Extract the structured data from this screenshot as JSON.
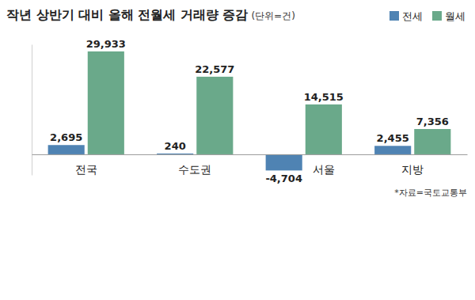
{
  "chart_data": {
    "type": "bar",
    "title": "작년 상반기 대비 올해 전월세 거래량 증감",
    "subtitle": "(단위=건)",
    "annotations": [
      "*자료=국토교통부"
    ],
    "categories": [
      "전국",
      "수도권",
      "서울",
      "지방"
    ],
    "series": [
      {
        "name": "전세",
        "color": "#4f83b3",
        "values": [
          2695,
          240,
          -4704,
          2455
        ],
        "value_labels": [
          "2,695",
          "240",
          "-4,704",
          "2,455"
        ]
      },
      {
        "name": "월세",
        "color": "#6aa98a",
        "values": [
          29933,
          22577,
          14515,
          7356
        ],
        "value_labels": [
          "29,933",
          "22,577",
          "14,515",
          "7,356"
        ]
      }
    ],
    "ylim": [
      -6000,
      32000
    ],
    "data_labels": true,
    "tick_labels": "x",
    "legend": "top-right",
    "grid": false
  }
}
